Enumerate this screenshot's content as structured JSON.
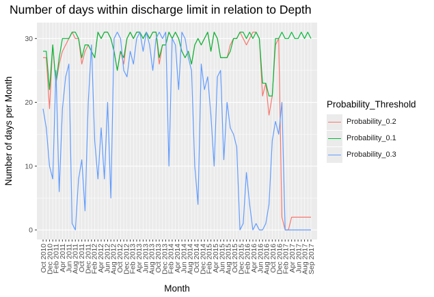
{
  "chart_data": {
    "type": "line",
    "title": "Number of days within discharge limit in relation to Depth",
    "xlabel": "Month",
    "ylabel": "Number of days per Month",
    "ylim": [
      -1.5,
      32.5
    ],
    "yticks": [
      0,
      10,
      20,
      30
    ],
    "grid": true,
    "legend_title": "Probability_Threshold",
    "legend_position": "right",
    "x": [
      "Oct 2010",
      "Nov 2010",
      "Dec 2010",
      "Jan 2011",
      "Feb 2011",
      "Mar 2011",
      "Apr 2011",
      "May 2011",
      "Jun 2011",
      "Jul 2011",
      "Aug 2011",
      "Sep 2011",
      "Oct 2011",
      "Nov 2011",
      "Dec 2011",
      "Jan 2012",
      "Feb 2012",
      "Mar 2012",
      "Apr 2012",
      "May 2012",
      "Jun 2012",
      "Jul 2012",
      "Aug 2012",
      "Sep 2012",
      "Oct 2012",
      "Nov 2012",
      "Dec 2012",
      "Jan 2013",
      "Feb 2013",
      "Mar 2013",
      "Apr 2013",
      "May 2013",
      "Jun 2013",
      "Jul 2013",
      "Aug 2013",
      "Sep 2013",
      "Oct 2013",
      "Nov 2013",
      "Dec 2013",
      "Jan 2014",
      "Feb 2014",
      "Mar 2014",
      "Apr 2014",
      "May 2014",
      "Jun 2014",
      "Jul 2014",
      "Aug 2014",
      "Sep 2014",
      "Oct 2014",
      "Nov 2014",
      "Dec 2014",
      "Jan 2015",
      "Feb 2015",
      "Mar 2015",
      "Apr 2015",
      "May 2015",
      "Jun 2015",
      "Jul 2015",
      "Aug 2015",
      "Sep 2015",
      "Oct 2015",
      "Nov 2015",
      "Dec 2015",
      "Jan 2016",
      "Feb 2016",
      "Mar 2016",
      "Apr 2016",
      "May 2016",
      "Jun 2016",
      "Jul 2016",
      "Aug 2016",
      "Sep 2016",
      "Oct 2016",
      "Nov 2016",
      "Dec 2016",
      "Jan 2017",
      "Feb 2017",
      "Mar 2017",
      "Apr 2017",
      "May 2017",
      "Jun 2017",
      "Jul 2017",
      "Aug 2017",
      "Sep 2017"
    ],
    "tick_labels": [
      "Oct 2010",
      "Dec 2010",
      "Feb 2011",
      "Apr 2011",
      "Jun 2011",
      "Aug 2011",
      "Oct 2011",
      "Dec 2011",
      "Feb 2012",
      "Apr 2012",
      "Jun 2012",
      "Aug 2012",
      "Oct 2012",
      "Dec 2012",
      "Feb 2013",
      "Apr 2013",
      "Jun 2013",
      "Aug 2013",
      "Oct 2013",
      "Dec 2013",
      "Feb 2014",
      "Apr 2014",
      "Jun 2014",
      "Aug 2014",
      "Oct 2014",
      "Dec 2014",
      "Feb 2015",
      "Apr 2015",
      "Jun 2015",
      "Aug 2015",
      "Oct 2015",
      "Dec 2015",
      "Feb 2016",
      "Apr 2016",
      "Jun 2016",
      "Aug 2016",
      "Oct 2016",
      "Dec 2016",
      "Feb 2017",
      "Apr 2017",
      "Jun 2017",
      "Aug 2017",
      "Sep 2017"
    ],
    "series": [
      {
        "name": "Probability_0.2",
        "color": "#F8766D",
        "values": [
          27,
          27,
          19,
          29,
          23,
          26,
          28,
          29,
          30,
          31,
          30,
          30,
          26,
          28,
          29,
          28,
          27,
          31,
          30,
          31,
          31,
          30,
          28,
          25,
          28,
          26,
          30,
          31,
          30,
          31,
          31,
          30,
          31,
          30,
          31,
          31,
          26,
          29,
          29,
          31,
          30,
          31,
          30,
          28,
          27,
          28,
          26,
          29,
          30,
          29,
          30,
          31,
          28,
          31,
          30,
          27,
          27,
          27,
          29,
          30,
          30,
          31,
          30,
          29,
          30,
          31,
          31,
          30,
          21,
          23,
          18,
          21,
          29,
          30,
          2,
          0,
          0,
          2,
          2,
          2,
          2,
          2,
          2,
          2
        ]
      },
      {
        "name": "Probability_0.1",
        "color": "#00BA38",
        "values": [
          28,
          28,
          22,
          29,
          23,
          27,
          30,
          30,
          30,
          31,
          31,
          30,
          27,
          29,
          29,
          28,
          27,
          31,
          30,
          31,
          31,
          30,
          28,
          25,
          28,
          27,
          30,
          31,
          30,
          31,
          31,
          30,
          31,
          30,
          31,
          31,
          27,
          29,
          29,
          31,
          30,
          31,
          30,
          28,
          27,
          28,
          26,
          29,
          30,
          29,
          30,
          31,
          28,
          31,
          30,
          27,
          27,
          27,
          28,
          30,
          30,
          31,
          31,
          30,
          31,
          30,
          31,
          30,
          23,
          23,
          21,
          21,
          30,
          30,
          31,
          30,
          30,
          31,
          30,
          30,
          31,
          30,
          31,
          30
        ]
      },
      {
        "name": "Probability_0.3",
        "color": "#619CFF",
        "values": [
          19,
          16,
          10,
          8,
          25,
          6,
          19,
          24,
          26,
          1,
          0,
          8,
          11,
          3,
          20,
          29,
          14,
          8,
          16,
          8,
          20,
          5,
          30,
          31,
          30,
          25,
          24,
          28,
          26,
          30,
          31,
          28,
          31,
          29,
          25,
          30,
          31,
          30,
          31,
          10,
          30,
          29,
          22,
          31,
          30,
          27,
          25,
          10,
          4,
          26,
          22,
          24,
          18,
          10,
          24,
          25,
          11,
          20,
          16,
          15,
          13,
          0,
          1,
          9,
          4,
          0,
          1,
          0,
          0,
          1,
          4,
          14,
          17,
          15,
          20,
          0,
          0,
          0,
          0,
          0,
          0,
          0,
          0,
          0
        ]
      }
    ]
  }
}
